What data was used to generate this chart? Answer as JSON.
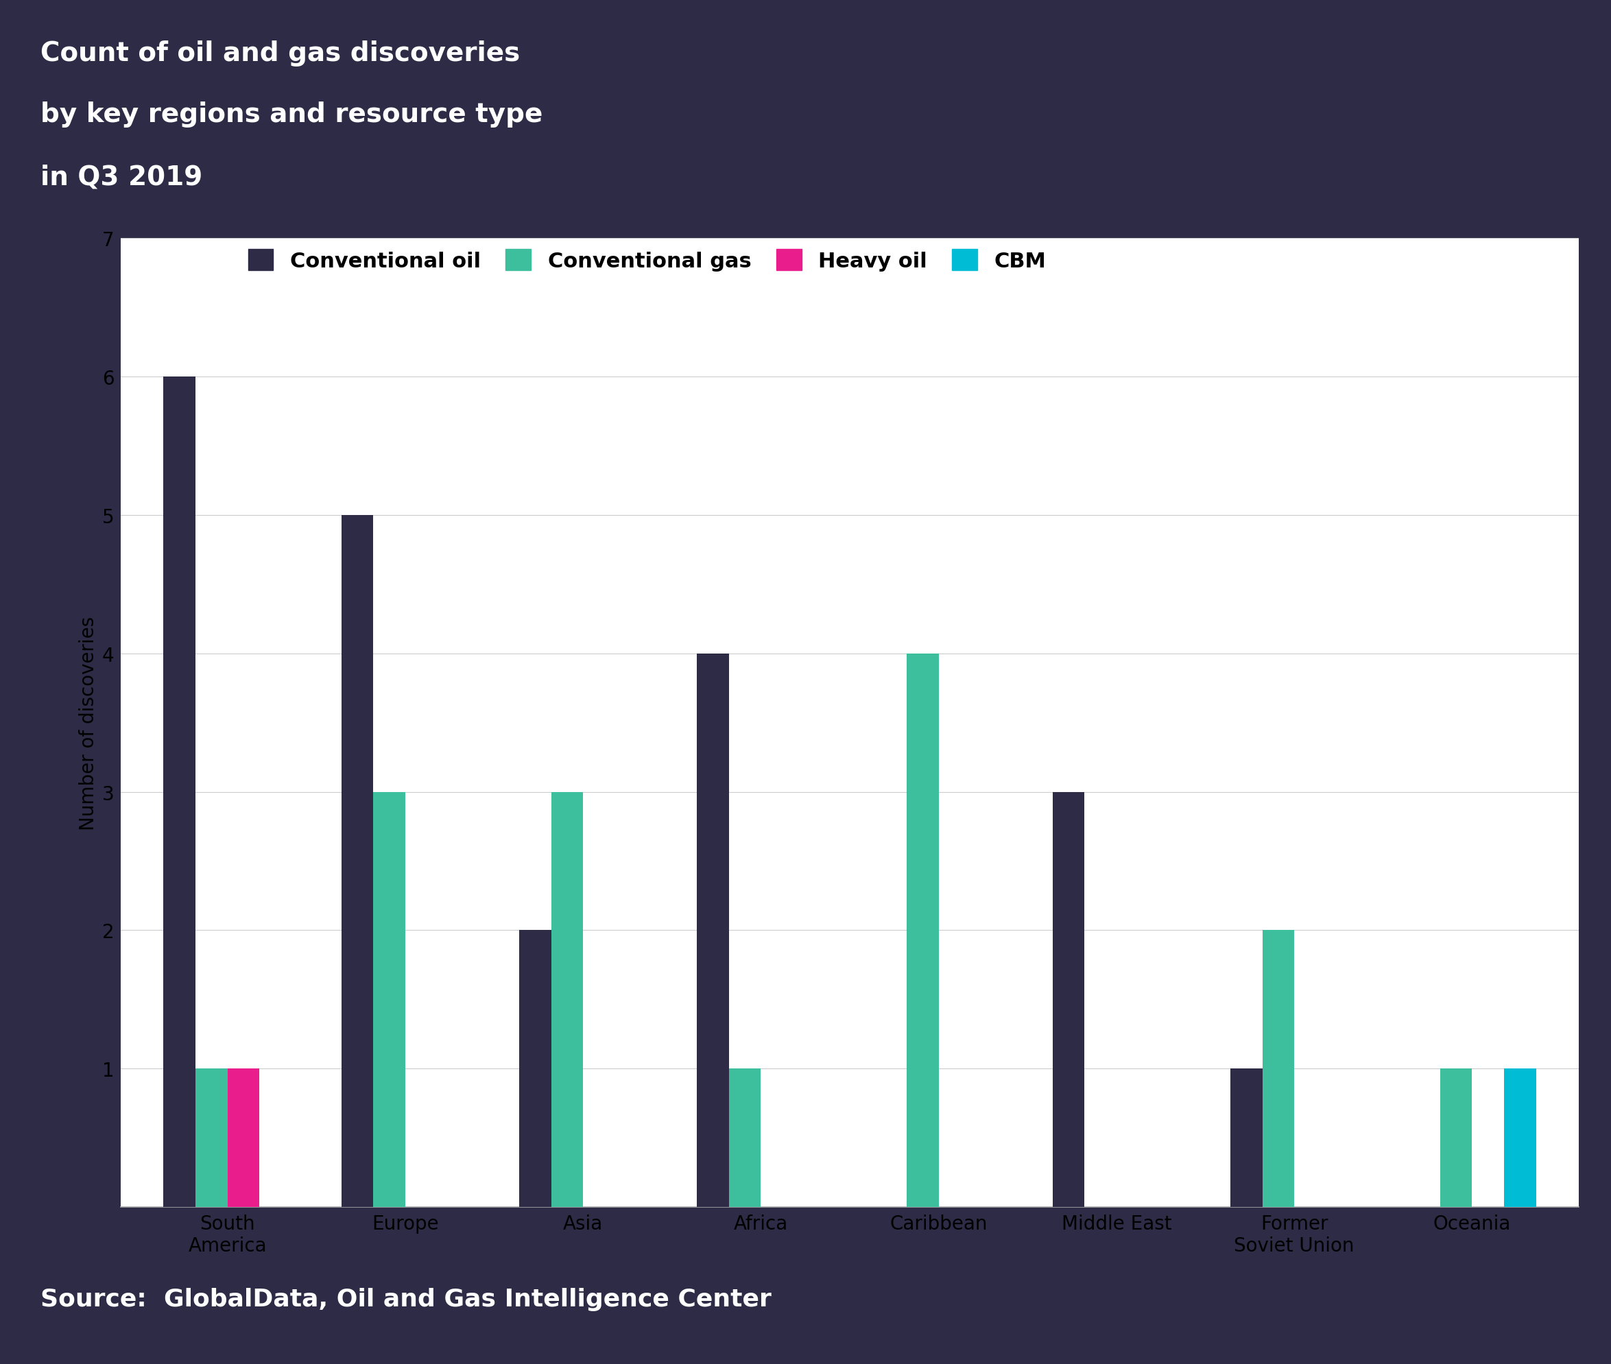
{
  "title_line1": "Count of oil and gas discoveries",
  "title_line2": "by key regions and resource type",
  "title_line3": "in Q3 2019",
  "source_text": "Source:  GlobalData, Oil and Gas Intelligence Center",
  "ylabel": "Number of discoveries",
  "header_bg_color": "#2d2b45",
  "footer_bg_color": "#2d2b45",
  "chart_bg_color": "#ffffff",
  "categories": [
    "South\nAmerica",
    "Europe",
    "Asia",
    "Africa",
    "Caribbean",
    "Middle East",
    "Former\nSoviet Union",
    "Oceania"
  ],
  "conventional_oil": [
    6,
    5,
    2,
    4,
    0,
    3,
    1,
    0
  ],
  "conventional_gas": [
    1,
    3,
    3,
    1,
    4,
    0,
    2,
    1
  ],
  "heavy_oil": [
    1,
    0,
    0,
    0,
    0,
    0,
    0,
    0
  ],
  "cbm": [
    0,
    0,
    0,
    0,
    0,
    0,
    0,
    1
  ],
  "color_conv_oil": "#2d2b45",
  "color_conv_gas": "#3dbf9e",
  "color_heavy_oil": "#e91e8c",
  "color_cbm": "#00bcd4",
  "legend_labels": [
    "Conventional oil",
    "Conventional gas",
    "Heavy oil",
    "CBM"
  ],
  "ylim": [
    0,
    7
  ],
  "yticks": [
    1,
    2,
    3,
    4,
    5,
    6,
    7
  ],
  "bar_width": 0.18,
  "title_fontsize": 28,
  "legend_fontsize": 22,
  "axis_label_fontsize": 20,
  "tick_fontsize": 20,
  "source_fontsize": 26
}
